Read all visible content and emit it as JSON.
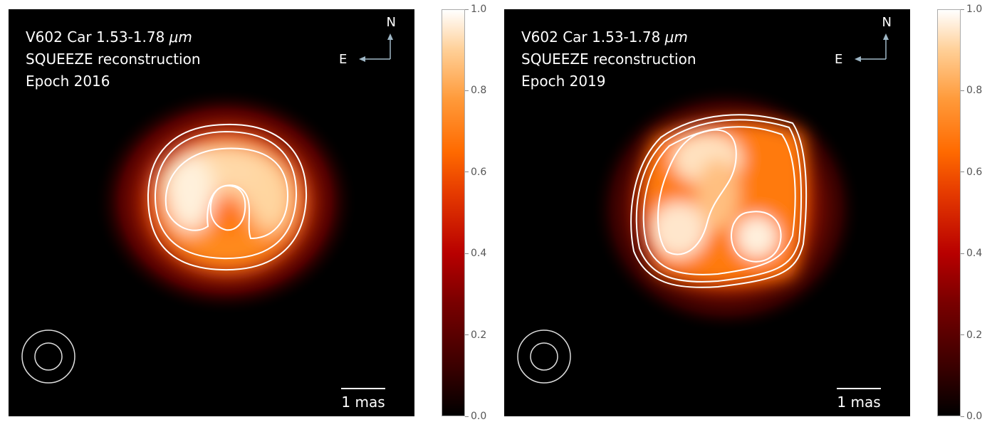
{
  "panels": [
    {
      "target": "V602 Car 1.53-1.78 ",
      "unit": "μm",
      "method": "SQUEEZE reconstruction",
      "epoch": "Epoch 2016",
      "compass_n": "N",
      "compass_e": "E",
      "scale_label": "1 mas"
    },
    {
      "target": "V602 Car 1.53-1.78 ",
      "unit": "μm",
      "method": "SQUEEZE reconstruction",
      "epoch": "Epoch 2019",
      "compass_n": "N",
      "compass_e": "E",
      "scale_label": "1 mas"
    }
  ],
  "colorbar": {
    "ticks": [
      "0.0",
      "0.2",
      "0.4",
      "0.6",
      "0.8",
      "1.0"
    ],
    "tick_values": [
      0.0,
      0.2,
      0.4,
      0.6,
      0.8,
      1.0
    ],
    "colormap": "gist_heat",
    "colors": {
      "low": "#000000",
      "mid": "#b80000",
      "high": "#ff9a3a",
      "max": "#ffffff"
    }
  },
  "compass_color": "#9fb7c6",
  "contour_color": "#ffffff"
}
